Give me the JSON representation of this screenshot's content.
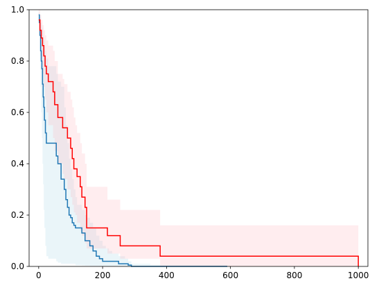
{
  "chart_data": {
    "type": "line",
    "subtype": "step",
    "title": "",
    "xlabel": "",
    "ylabel": "",
    "xlim": [
      -30,
      1030
    ],
    "ylim": [
      0,
      1
    ],
    "x_ticks": [
      0,
      200,
      400,
      600,
      800,
      1000
    ],
    "x_tick_labels": [
      "0",
      "200",
      "400",
      "600",
      "800",
      "1000"
    ],
    "y_ticks": [
      0,
      0.2,
      0.4,
      0.6,
      0.8,
      1.0
    ],
    "y_tick_labels": [
      "0.0",
      "0.2",
      "0.4",
      "0.6",
      "0.8",
      "1.0"
    ],
    "grid": false,
    "legend": "none",
    "series": [
      {
        "color": "#1f77b4",
        "band_color": "#add8e6",
        "x": [
          0,
          2,
          4,
          6,
          8,
          10,
          12,
          14,
          16,
          18,
          21,
          24,
          30,
          55,
          60,
          70,
          80,
          85,
          90,
          95,
          100,
          105,
          110,
          115,
          120,
          135,
          145,
          150,
          160,
          170,
          180,
          190,
          200,
          210,
          220,
          230,
          240,
          250,
          260,
          270,
          280,
          290,
          300,
          350,
          450,
          590
        ],
        "y": [
          0.98,
          0.95,
          0.9,
          0.84,
          0.8,
          0.77,
          0.71,
          0.66,
          0.62,
          0.57,
          0.52,
          0.48,
          0.48,
          0.43,
          0.4,
          0.34,
          0.3,
          0.26,
          0.23,
          0.2,
          0.19,
          0.17,
          0.16,
          0.15,
          0.15,
          0.13,
          0.1,
          0.1,
          0.08,
          0.06,
          0.04,
          0.03,
          0.02,
          0.02,
          0.02,
          0.02,
          0.02,
          0.01,
          0.01,
          0.01,
          0.005,
          0.0,
          0.0,
          0.0,
          0.0,
          0.0
        ],
        "ci_lower": [
          0.96,
          0.92,
          0.82,
          0.7,
          0.6,
          0.5,
          0.4,
          0.32,
          0.22,
          0.15,
          0.08,
          0.04,
          0.03,
          0.02,
          0.015,
          0.01,
          0.01,
          0.01,
          0.01,
          0.01,
          0.01,
          0.01,
          0.01,
          0.005,
          0.005,
          0.004,
          0.003,
          0.003,
          0.002,
          0.002,
          0.002,
          0.001,
          0.001,
          0.001,
          0.001,
          0.001,
          0.001,
          0.001,
          0.001,
          0.001,
          0.0,
          0.0,
          0.0,
          0.0,
          0.0,
          0.0
        ],
        "ci_upper": [
          0.99,
          0.98,
          0.97,
          0.95,
          0.94,
          0.93,
          0.92,
          0.9,
          0.88,
          0.86,
          0.84,
          0.81,
          0.78,
          0.75,
          0.72,
          0.7,
          0.62,
          0.55,
          0.48,
          0.42,
          0.38,
          0.34,
          0.3,
          0.27,
          0.24,
          0.22,
          0.2,
          0.19,
          0.17,
          0.15,
          0.12,
          0.1,
          0.08,
          0.07,
          0.06,
          0.05,
          0.05,
          0.04,
          0.04,
          0.03,
          0.02,
          0.01,
          0.01,
          0.005,
          0.005,
          0.005
        ]
      },
      {
        "color": "#ff0000",
        "band_color": "#ffb6c1",
        "x": [
          0,
          4,
          8,
          12,
          16,
          20,
          24,
          30,
          45,
          50,
          60,
          75,
          80,
          90,
          100,
          105,
          110,
          115,
          120,
          130,
          135,
          145,
          150,
          215,
          255,
          380,
          1000
        ],
        "y": [
          0.96,
          0.92,
          0.89,
          0.86,
          0.82,
          0.78,
          0.75,
          0.72,
          0.68,
          0.63,
          0.58,
          0.54,
          0.54,
          0.5,
          0.46,
          0.42,
          0.38,
          0.38,
          0.35,
          0.31,
          0.27,
          0.23,
          0.15,
          0.12,
          0.08,
          0.04,
          0.0
        ],
        "ci_lower": [
          0.9,
          0.85,
          0.8,
          0.75,
          0.7,
          0.65,
          0.6,
          0.55,
          0.5,
          0.45,
          0.4,
          0.36,
          0.34,
          0.3,
          0.27,
          0.24,
          0.21,
          0.2,
          0.17,
          0.14,
          0.12,
          0.09,
          0.07,
          0.05,
          0.03,
          0.0,
          0.0
        ],
        "ci_upper": [
          1.0,
          0.98,
          0.96,
          0.94,
          0.92,
          0.9,
          0.88,
          0.86,
          0.84,
          0.8,
          0.75,
          0.73,
          0.71,
          0.68,
          0.65,
          0.62,
          0.58,
          0.55,
          0.52,
          0.48,
          0.44,
          0.4,
          0.31,
          0.26,
          0.22,
          0.16,
          0.16
        ]
      }
    ]
  }
}
